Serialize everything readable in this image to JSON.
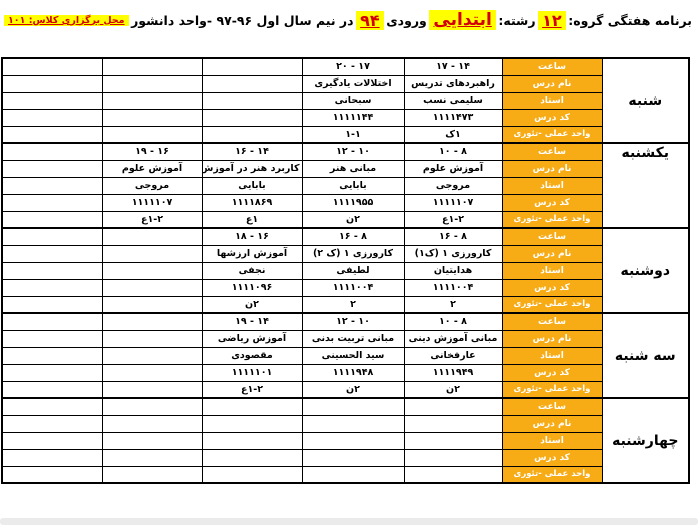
{
  "header": {
    "title_label": "برنامه هفتگی گروه:",
    "group_number": "۱۲",
    "major_label": "رشته:",
    "major_value": "ابتدایی",
    "entry_label": "ورودی",
    "entry_year": "۹۴",
    "semester_text": "در نیم سال اول ۹۶-۹۷ -واحد دانشور",
    "location_text": "محل برگزاری کلاس: ۱۰۱"
  },
  "colors": {
    "highlight_yellow": "#ffff00",
    "accent_red": "#d40000",
    "label_orange": "#f7ab15"
  },
  "table": {
    "row_labels": [
      "ساعت",
      "نام درس",
      "استاد",
      "کد درس",
      "واحد عملی -تئوری"
    ],
    "row_label_ids": [
      "time",
      "course",
      "teacher",
      "code",
      "units"
    ],
    "days": [
      {
        "id": "saturday",
        "name": "شنبه",
        "periods": [
          {
            "time": "۱۴ - ۱۷",
            "course": "راهبردهای تدریس",
            "teacher": "سلیمی نسب",
            "code": "۱۱۱۱۴۷۳",
            "units": "۱ک"
          },
          {
            "time": "۱۷ - ۲۰",
            "course": "اختلالات یادگیری",
            "teacher": "سبحانی",
            "code": "۱۱۱۱۱۴۴",
            "units": "۱-۱"
          },
          {
            "time": "",
            "course": "",
            "teacher": "",
            "code": "",
            "units": ""
          },
          {
            "time": "",
            "course": "",
            "teacher": "",
            "code": "",
            "units": ""
          },
          {
            "time": "",
            "course": "",
            "teacher": "",
            "code": "",
            "units": ""
          }
        ]
      },
      {
        "id": "sunday",
        "name": "یکشنبه",
        "periods": [
          {
            "time": "۸ - ۱۰",
            "course": "آموزش علوم",
            "teacher": "مروجی",
            "code": "۱۱۱۱۱۰۷",
            "units": "۱-۲ع"
          },
          {
            "time": "۱۰ - ۱۲",
            "course": "مبانی هنر",
            "teacher": "بابایی",
            "code": "۱۱۱۱۹۵۵",
            "units": "۲ن"
          },
          {
            "time": "۱۴ - ۱۶",
            "course": "کاربرد هنر در آموزش",
            "teacher": "بابایی",
            "code": "۱۱۱۱۸۶۹",
            "units": "۱ع"
          },
          {
            "time": "۱۶ - ۱۹",
            "course": "آموزش علوم",
            "teacher": "مروجی",
            "code": "۱۱۱۱۱۰۷",
            "units": "۱-۲ع"
          },
          {
            "time": "",
            "course": "",
            "teacher": "",
            "code": "",
            "units": ""
          }
        ]
      },
      {
        "id": "monday",
        "name": "دوشنبه",
        "periods": [
          {
            "time": "۸ - ۱۶",
            "course": "کارورزی ۱  (ک۱)",
            "teacher": "هدایتیان",
            "code": "۱۱۱۱۰۰۴",
            "units": "۲"
          },
          {
            "time": "۸ - ۱۶",
            "course": "کارورزی ۱ (ک ۲)",
            "teacher": "لطیفی",
            "code": "۱۱۱۱۰۰۴",
            "units": "۲"
          },
          {
            "time": "۱۶ - ۱۸",
            "course": "آموزش ارزشها",
            "teacher": "نجفی",
            "code": "۱۱۱۱۰۹۶",
            "units": "۲ن"
          },
          {
            "time": "",
            "course": "",
            "teacher": "",
            "code": "",
            "units": ""
          },
          {
            "time": "",
            "course": "",
            "teacher": "",
            "code": "",
            "units": ""
          }
        ]
      },
      {
        "id": "tuesday",
        "name": "سه شنبه",
        "periods": [
          {
            "time": "۸ - ۱۰",
            "course": "مبانی آموزش دینی",
            "teacher": "عارفخانی",
            "code": "۱۱۱۱۹۴۹",
            "units": "۲ن"
          },
          {
            "time": "۱۰ - ۱۲",
            "course": "مبانی تربیت بدنی",
            "teacher": "سید الحسینی",
            "code": "۱۱۱۱۹۴۸",
            "units": "۲ن"
          },
          {
            "time": "۱۴ - ۱۹",
            "course": "آموزش ریاضی",
            "teacher": "مقصودی",
            "code": "۱۱۱۱۱۰۱",
            "units": "۱-۲ع"
          },
          {
            "time": "",
            "course": "",
            "teacher": "",
            "code": "",
            "units": ""
          },
          {
            "time": "",
            "course": "",
            "teacher": "",
            "code": "",
            "units": ""
          }
        ]
      },
      {
        "id": "wednesday",
        "name": "چهارشنبه",
        "periods": [
          {
            "time": "",
            "course": "",
            "teacher": "",
            "code": "",
            "units": ""
          },
          {
            "time": "",
            "course": "",
            "teacher": "",
            "code": "",
            "units": ""
          },
          {
            "time": "",
            "course": "",
            "teacher": "",
            "code": "",
            "units": ""
          },
          {
            "time": "",
            "course": "",
            "teacher": "",
            "code": "",
            "units": ""
          },
          {
            "time": "",
            "course": "",
            "teacher": "",
            "code": "",
            "units": ""
          }
        ]
      }
    ]
  }
}
